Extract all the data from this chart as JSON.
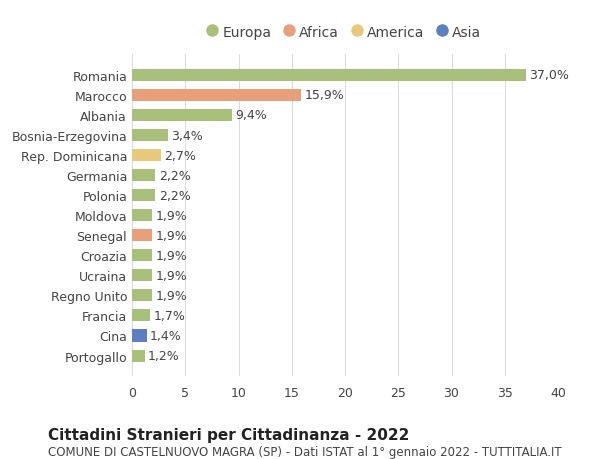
{
  "countries": [
    "Portogallo",
    "Cina",
    "Francia",
    "Regno Unito",
    "Ucraina",
    "Croazia",
    "Senegal",
    "Moldova",
    "Polonia",
    "Germania",
    "Rep. Dominicana",
    "Bosnia-Erzegovina",
    "Albania",
    "Marocco",
    "Romania"
  ],
  "values": [
    1.2,
    1.4,
    1.7,
    1.9,
    1.9,
    1.9,
    1.9,
    1.9,
    2.2,
    2.2,
    2.7,
    3.4,
    9.4,
    15.9,
    37.0
  ],
  "labels": [
    "1,2%",
    "1,4%",
    "1,7%",
    "1,9%",
    "1,9%",
    "1,9%",
    "1,9%",
    "1,9%",
    "2,2%",
    "2,2%",
    "2,7%",
    "3,4%",
    "9,4%",
    "15,9%",
    "37,0%"
  ],
  "colors": [
    "#a8c07a",
    "#5b7fc1",
    "#a8c07a",
    "#a8c07a",
    "#a8c07a",
    "#a8c07a",
    "#e8a07a",
    "#a8c07a",
    "#a8c07a",
    "#a8c07a",
    "#e8c87a",
    "#a8c07a",
    "#a8c07a",
    "#e8a07a",
    "#a8c07a"
  ],
  "legend_labels": [
    "Europa",
    "Africa",
    "America",
    "Asia"
  ],
  "legend_colors": [
    "#a8c07a",
    "#e8a07a",
    "#e8c87a",
    "#5b7fc1"
  ],
  "title": "Cittadini Stranieri per Cittadinanza - 2022",
  "subtitle": "COMUNE DI CASTELNUOVO MAGRA (SP) - Dati ISTAT al 1° gennaio 2022 - TUTTITALIA.IT",
  "xlim": [
    0,
    40
  ],
  "xticks": [
    0,
    5,
    10,
    15,
    20,
    25,
    30,
    35,
    40
  ],
  "bg_color": "#ffffff",
  "grid_color": "#dddddd",
  "bar_height": 0.6,
  "title_fontsize": 11,
  "subtitle_fontsize": 8.5,
  "tick_fontsize": 9,
  "label_fontsize": 9,
  "legend_fontsize": 10
}
